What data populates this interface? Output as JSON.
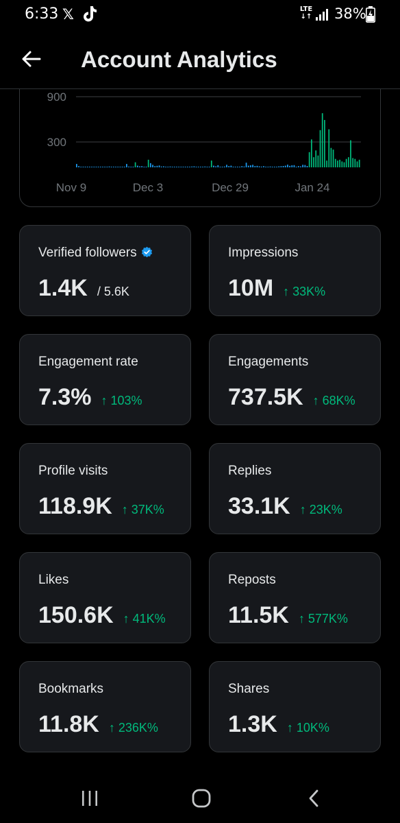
{
  "status_bar": {
    "time": "6:33",
    "x_logo": "𝕏",
    "network_top": "LTE",
    "network_bottom": "↓↑",
    "battery": "38%"
  },
  "header": {
    "title": "Account Analytics"
  },
  "chart_data": {
    "type": "bar",
    "y_ticks": [
      "900",
      "300"
    ],
    "x_ticks": [
      "Nov 9",
      "Dec 3",
      "Dec 29",
      "Jan 24"
    ],
    "grid": true,
    "colors": {
      "bar": "#1d9bf0",
      "highlight": "#00ba7c",
      "grid": "#3e4144",
      "tick": "#71767b"
    },
    "series": [
      {
        "values": [
          40,
          15,
          5,
          8,
          6,
          5,
          4,
          6,
          5,
          8,
          4,
          5,
          6,
          5,
          4,
          10,
          6,
          8,
          5,
          4,
          6,
          5,
          7,
          40,
          10,
          8,
          6,
          60,
          20,
          12,
          14,
          8,
          6,
          90,
          50,
          30,
          14,
          18,
          22,
          10,
          12,
          8,
          6,
          10,
          5,
          8,
          6,
          4,
          5,
          6,
          4,
          8,
          6,
          10,
          12,
          6,
          5,
          8,
          6,
          10,
          4,
          5,
          80,
          20,
          12,
          25,
          8,
          6,
          10,
          30,
          15,
          20,
          8,
          4,
          5,
          6,
          14,
          10,
          55,
          20,
          24,
          30,
          15,
          18,
          12,
          9,
          14,
          8,
          6,
          10,
          7,
          5,
          8,
          12,
          14,
          16,
          20,
          32,
          18,
          24,
          26,
          8,
          15,
          12,
          30,
          28,
          16,
          180,
          330,
          120,
          200,
          140,
          440,
          640,
          560,
          80,
          450,
          230,
          210,
          100,
          80,
          90,
          70,
          60,
          100,
          120,
          320,
          110,
          100,
          70,
          90
        ]
      }
    ],
    "highlight_values": [
      0,
      0,
      0,
      0,
      0,
      0,
      0,
      0,
      0,
      0,
      0,
      0,
      0,
      0,
      0,
      0,
      0,
      0,
      0,
      0,
      0,
      0,
      0,
      0,
      0,
      0,
      0,
      0,
      0,
      0,
      0,
      0,
      0,
      0,
      0,
      0,
      0,
      0,
      0,
      0,
      0,
      0,
      0,
      0,
      0,
      0,
      0,
      0,
      0,
      0,
      0,
      0,
      0,
      0,
      0,
      0,
      0,
      0,
      0,
      0,
      0,
      0,
      0,
      0,
      0,
      0,
      0,
      0,
      0,
      0,
      0,
      0,
      0,
      0,
      0,
      0,
      0,
      0,
      0,
      0,
      0,
      0,
      0,
      0,
      0,
      0,
      0,
      0,
      0,
      0,
      0,
      0,
      0,
      0,
      0,
      0,
      0,
      0,
      0,
      0,
      0,
      0,
      0,
      0,
      0,
      0,
      0,
      0,
      0,
      0,
      0,
      0,
      0,
      0,
      0,
      0,
      0,
      0,
      0,
      0,
      0,
      0,
      0,
      0,
      0,
      0,
      0,
      0,
      0,
      0,
      0
    ],
    "ylim": [
      0,
      1150
    ]
  },
  "stats": [
    {
      "label": "Verified followers",
      "verified": true,
      "value": "1.4K",
      "sub": "/ 5.6K",
      "change": ""
    },
    {
      "label": "Impressions",
      "verified": false,
      "value": "10M",
      "sub": "",
      "change": "↑ 33K%"
    },
    {
      "label": "Engagement rate",
      "verified": false,
      "value": "7.3%",
      "sub": "",
      "change": "↑ 103%"
    },
    {
      "label": "Engagements",
      "verified": false,
      "value": "737.5K",
      "sub": "",
      "change": "↑ 68K%"
    },
    {
      "label": "Profile visits",
      "verified": false,
      "value": "118.9K",
      "sub": "",
      "change": "↑ 37K%"
    },
    {
      "label": "Replies",
      "verified": false,
      "value": "33.1K",
      "sub": "",
      "change": "↑ 23K%"
    },
    {
      "label": "Likes",
      "verified": false,
      "value": "150.6K",
      "sub": "",
      "change": "↑ 41K%"
    },
    {
      "label": "Reposts",
      "verified": false,
      "value": "11.5K",
      "sub": "",
      "change": "↑ 577K%"
    },
    {
      "label": "Bookmarks",
      "verified": false,
      "value": "11.8K",
      "sub": "",
      "change": "↑ 236K%"
    },
    {
      "label": "Shares",
      "verified": false,
      "value": "1.3K",
      "sub": "",
      "change": "↑ 10K%"
    }
  ],
  "icons": {
    "back": "back-arrow-icon",
    "verified": "verified-badge-icon",
    "recents": "recent-apps-icon",
    "home": "home-icon",
    "nav_back": "nav-back-icon"
  }
}
